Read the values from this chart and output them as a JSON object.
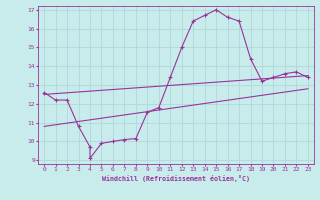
{
  "xlabel": "Windchill (Refroidissement éolien,°C)",
  "bg_color": "#c8ecec",
  "grid_color": "#b0d8d8",
  "line_color": "#993399",
  "xlim": [
    -0.5,
    23.5
  ],
  "ylim": [
    8.8,
    17.2
  ],
  "xticks": [
    0,
    1,
    2,
    3,
    4,
    5,
    6,
    7,
    8,
    9,
    10,
    11,
    12,
    13,
    14,
    15,
    16,
    17,
    18,
    19,
    20,
    21,
    22,
    23
  ],
  "yticks": [
    9,
    10,
    11,
    12,
    13,
    14,
    15,
    16,
    17
  ],
  "curve1_x": [
    0,
    1,
    2,
    3,
    4,
    4,
    5,
    6,
    7,
    8,
    9,
    10,
    11,
    12,
    13,
    14,
    15,
    16,
    17,
    18,
    19,
    20,
    21,
    22,
    23
  ],
  "curve1_y": [
    12.6,
    12.2,
    12.2,
    10.8,
    9.7,
    9.1,
    9.9,
    10.0,
    10.1,
    10.15,
    11.55,
    11.8,
    13.4,
    15.0,
    16.4,
    16.7,
    17.0,
    16.6,
    16.4,
    14.4,
    13.2,
    13.4,
    13.6,
    13.7,
    13.4
  ],
  "curve2_x": [
    0,
    23
  ],
  "curve2_y": [
    12.5,
    13.5
  ],
  "curve3_x": [
    0,
    23
  ],
  "curve3_y": [
    10.8,
    12.8
  ]
}
